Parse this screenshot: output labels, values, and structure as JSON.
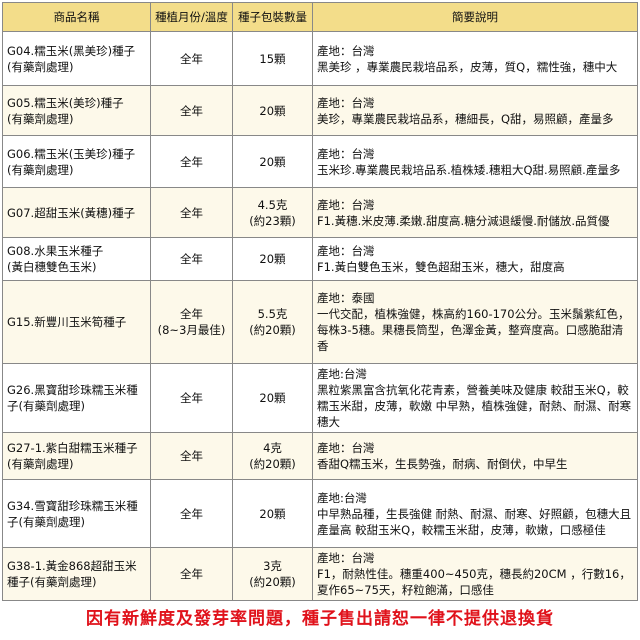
{
  "table": {
    "header": [
      "商品名稱",
      "種植月份/溫度",
      "種子包裝數量",
      "簡要說明"
    ],
    "rows": [
      {
        "name": [
          "G04.糯玉米(黑美珍)種子",
          "(有藥劑處理)"
        ],
        "season": [
          "全年"
        ],
        "qty": [
          "15顆"
        ],
        "origin": "產地：台灣",
        "desc": "黑美珍 ，專業農民栽培品系，皮薄，質Q，糯性強，穗中大"
      },
      {
        "name": [
          "G05.糯玉米(美珍)種子",
          "(有藥劑處理)"
        ],
        "season": [
          "全年"
        ],
        "qty": [
          "20顆"
        ],
        "origin": "產地：台灣",
        "desc": "美珍，專業農民栽培品系，穗細長，Q甜，易照顧，產量多"
      },
      {
        "name": [
          "G06.糯玉米(玉美珍)種子",
          "(有藥劑處理)"
        ],
        "season": [
          "全年"
        ],
        "qty": [
          "20顆"
        ],
        "origin": "產地：台灣",
        "desc": "玉米珍.專業農民栽培品系.植株矮.穗粗大Q甜.易照顧.產量多"
      },
      {
        "name": [
          "G07.超甜玉米(黃穗)種子"
        ],
        "season": [
          "全年"
        ],
        "qty": [
          "4.5克",
          "(約23顆)"
        ],
        "origin": "產地：台灣",
        "desc": "F1.黃穗.米皮薄.柔嫩.甜度高.糖分減退緩慢.耐儲放.品質優"
      },
      {
        "name": [
          "G08.水果玉米種子",
          "(黃白穗雙色玉米)"
        ],
        "season": [
          "全年"
        ],
        "qty": [
          "20顆"
        ],
        "origin": "產地：台灣",
        "desc": "F1.黃白雙色玉米，雙色超甜玉米，穗大，甜度高"
      },
      {
        "name": [
          "G15.新豐川玉米筍種子"
        ],
        "season": [
          "全年",
          "(8~3月最佳)"
        ],
        "qty": [
          "5.5克",
          "(約20顆)"
        ],
        "origin": "產地：泰國",
        "desc": "一代交配，植株強健，株高約160-170公分。玉米鬚紫紅色，每株3-5穗。果穗長筒型，色澤金黃，整齊度高。口感脆甜清香"
      },
      {
        "name": [
          "G26.黑寶甜珍珠糯玉米種",
          "子(有藥劑處理)"
        ],
        "season": [
          "全年"
        ],
        "qty": [
          "20顆"
        ],
        "origin": "產地:台灣",
        "desc": "黑粒紫黑富含抗氧化花青素，營養美味及健康 較甜玉米Q，較糯玉米甜，皮薄，軟嫩 中早熟，植株強健，耐熱、耐濕、耐寒 穗大"
      },
      {
        "name": [
          "G27-1.紫白甜糯玉米種子",
          "(有藥劑處理)"
        ],
        "season": [
          "全年"
        ],
        "qty": [
          "4克",
          "(約20顆)"
        ],
        "origin": "產地：台灣",
        "desc": "香甜Q糯玉米，生長勢強，耐病、耐倒伏，中早生"
      },
      {
        "name": [
          "G34.雪寶甜珍珠糯玉米種",
          "子(有藥劑處理)"
        ],
        "season": [
          "全年"
        ],
        "qty": [
          "20顆"
        ],
        "origin": "產地:台灣",
        "desc": "中早熟品種，生長強健 耐熱、耐濕、耐寒、好照顧，包穗大且產量高 較甜玉米Q，較糯玉米甜，皮薄，軟嫩，口感極佳"
      },
      {
        "name": [
          "G38-1.黃金868超甜玉米",
          "種子(有藥劑處理)"
        ],
        "season": [
          "全年"
        ],
        "qty": [
          "3克",
          "(約20顆)"
        ],
        "origin": "產地：台灣",
        "desc": "F1，耐熱性佳。穗重400~450克，穗長約20CM ，行數16，夏作65~75天，籽粒飽滿，口感佳"
      }
    ]
  },
  "footer": "因有新鮮度及發芽率問題，種子售出請恕一律不提供退換貨"
}
